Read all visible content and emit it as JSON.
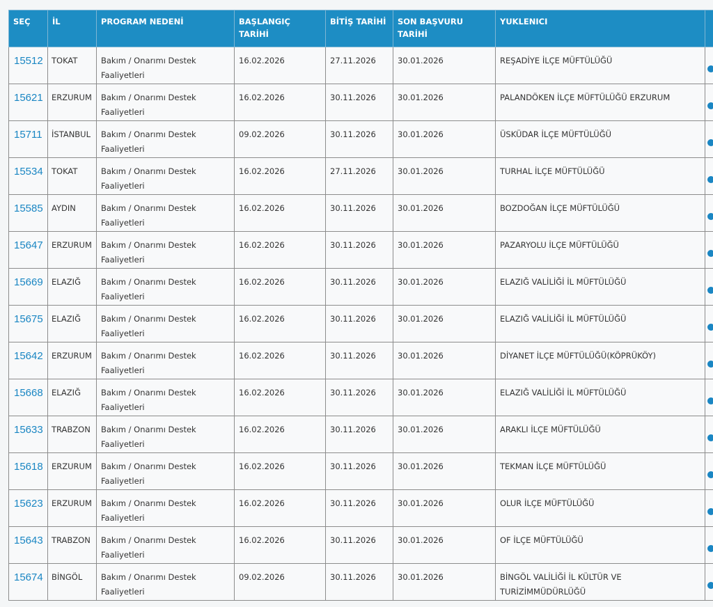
{
  "table": {
    "columns": [
      "SEÇ",
      "İL",
      "PROGRAM NEDENİ",
      "BAŞLANGIÇ TARİHİ",
      "BİTİŞ TARİHİ",
      "SON BAŞVURU TARİHİ",
      "YUKLENICI"
    ],
    "rows": [
      [
        "15512",
        "TOKAT",
        "Bakım / Onarımı Destek Faaliyetleri",
        "16.02.2026",
        "27.11.2026",
        "30.01.2026",
        "REŞADİYE İLÇE MÜFTÜLÜĞÜ"
      ],
      [
        "15621",
        "ERZURUM",
        "Bakım / Onarımı Destek Faaliyetleri",
        "16.02.2026",
        "30.11.2026",
        "30.01.2026",
        "PALANDÖKEN İLÇE MÜFTÜLÜĞÜ ERZURUM"
      ],
      [
        "15711",
        "İSTANBUL",
        "Bakım / Onarımı Destek Faaliyetleri",
        "09.02.2026",
        "30.11.2026",
        "30.01.2026",
        "ÜSKÜDAR İLÇE MÜFTÜLÜĞÜ"
      ],
      [
        "15534",
        "TOKAT",
        "Bakım / Onarımı Destek Faaliyetleri",
        "16.02.2026",
        "27.11.2026",
        "30.01.2026",
        "TURHAL İLÇE MÜFTÜLÜĞÜ"
      ],
      [
        "15585",
        "AYDIN",
        "Bakım / Onarımı Destek Faaliyetleri",
        "16.02.2026",
        "30.11.2026",
        "30.01.2026",
        "BOZDOĞAN İLÇE MÜFTÜLÜĞÜ"
      ],
      [
        "15647",
        "ERZURUM",
        "Bakım / Onarımı Destek Faaliyetleri",
        "16.02.2026",
        "30.11.2026",
        "30.01.2026",
        "PAZARYOLU İLÇE MÜFTÜLÜĞÜ"
      ],
      [
        "15669",
        "ELAZIĞ",
        "Bakım / Onarımı Destek Faaliyetleri",
        "16.02.2026",
        "30.11.2026",
        "30.01.2026",
        "ELAZIĞ VALİLİĞİ İL MÜFTÜLÜĞÜ"
      ],
      [
        "15675",
        "ELAZIĞ",
        "Bakım / Onarımı Destek Faaliyetleri",
        "16.02.2026",
        "30.11.2026",
        "30.01.2026",
        "ELAZIĞ VALİLİĞİ İL MÜFTÜLÜĞÜ"
      ],
      [
        "15642",
        "ERZURUM",
        "Bakım / Onarımı Destek Faaliyetleri",
        "16.02.2026",
        "30.11.2026",
        "30.01.2026",
        "DİYANET İLÇE MÜFTÜLÜĞÜ(KÖPRÜKÖY)"
      ],
      [
        "15668",
        "ELAZIĞ",
        "Bakım / Onarımı Destek Faaliyetleri",
        "16.02.2026",
        "30.11.2026",
        "30.01.2026",
        "ELAZIĞ VALİLİĞİ İL MÜFTÜLÜĞÜ"
      ],
      [
        "15633",
        "TRABZON",
        "Bakım / Onarımı Destek Faaliyetleri",
        "16.02.2026",
        "30.11.2026",
        "30.01.2026",
        "ARAKLI İLÇE MÜFTÜLÜĞÜ"
      ],
      [
        "15618",
        "ERZURUM",
        "Bakım / Onarımı Destek Faaliyetleri",
        "16.02.2026",
        "30.11.2026",
        "30.01.2026",
        "TEKMAN İLÇE MÜFTÜLÜĞÜ"
      ],
      [
        "15623",
        "ERZURUM",
        "Bakım / Onarımı Destek Faaliyetleri",
        "16.02.2026",
        "30.11.2026",
        "30.01.2026",
        "OLUR İLÇE MÜFTÜLÜĞÜ"
      ],
      [
        "15643",
        "TRABZON",
        "Bakım / Onarımı Destek Faaliyetleri",
        "16.02.2026",
        "30.11.2026",
        "30.01.2026",
        "OF İLÇE MÜFTÜLÜĞÜ"
      ],
      [
        "15674",
        "BİNGÖL",
        "Bakım / Onarımı Destek Faaliyetleri",
        "09.02.2026",
        "30.11.2026",
        "30.01.2026",
        "BİNGÖL VALİLİĞİ İL KÜLTÜR VE TURİZİMMÜDÜRLÜĞÜ"
      ]
    ]
  }
}
